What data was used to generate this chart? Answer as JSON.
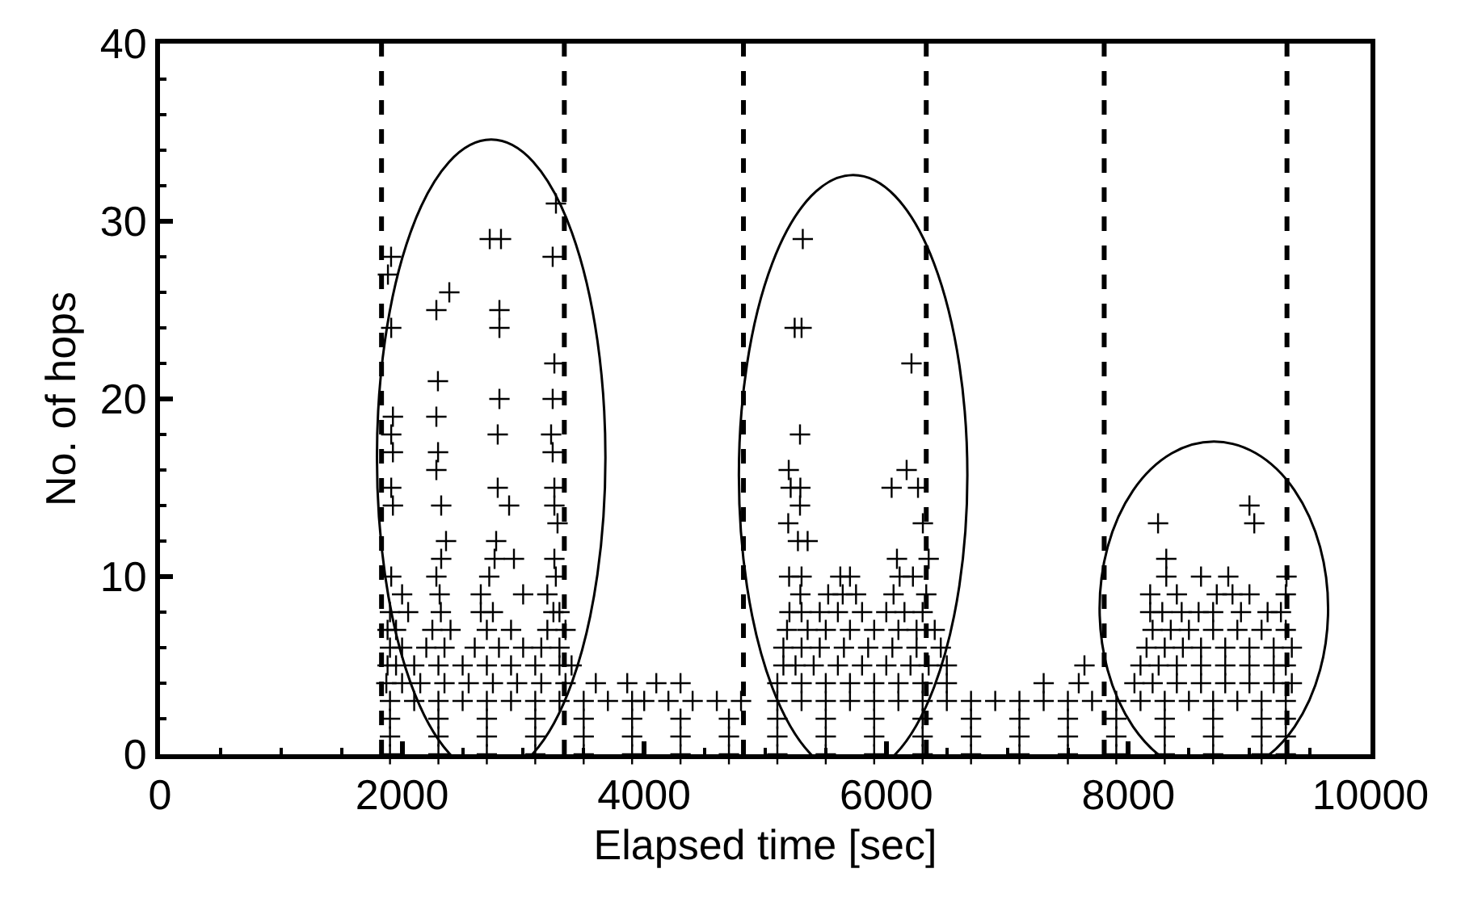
{
  "chart_data": {
    "type": "scatter",
    "xlabel": "Elapsed time [sec]",
    "ylabel": "No. of hops",
    "xlim": [
      0,
      10000
    ],
    "xticks": [
      0,
      2000,
      4000,
      6000,
      8000,
      10000
    ],
    "ylim": [
      0,
      40
    ],
    "yticks": [
      0,
      10,
      20,
      30,
      40
    ],
    "marker": "cross",
    "ref_lines": [
      {
        "axis": "x",
        "value": 1830,
        "color": "#000000",
        "line_style": "dashed"
      },
      {
        "axis": "x",
        "value": 3340,
        "color": "#000000",
        "line_style": "dashed"
      },
      {
        "axis": "x",
        "value": 4820,
        "color": "#000000",
        "line_style": "dashed"
      },
      {
        "axis": "x",
        "value": 6330,
        "color": "#000000",
        "line_style": "dashed"
      },
      {
        "axis": "x",
        "value": 7800,
        "color": "#000000",
        "line_style": "dashed"
      },
      {
        "axis": "x",
        "value": 9310,
        "color": "#000000",
        "line_style": "dashed"
      }
    ],
    "series": [
      {
        "color": "#000000",
        "x": [
          3271,
          2724,
          2817,
          3244,
          1909,
          1883,
          2390,
          2283,
          2804,
          2804,
          1910,
          3258,
          2296,
          2804,
          3244,
          1924,
          2283,
          1910,
          2790,
          3231,
          2297,
          1924,
          3244,
          2283,
          2790,
          3258,
          1910,
          2323,
          2884,
          1924,
          3258,
          2363,
          2777,
          3284,
          2764,
          2924,
          2323,
          3258,
          1910,
          2283,
          2720,
          3270,
          2000,
          2310,
          2650,
          3000,
          3200,
          1900,
          2050,
          2320,
          2650,
          2750,
          3250,
          3300,
          1880,
          1950,
          2250,
          2400,
          2700,
          2900,
          3200,
          3350,
          1900,
          2000,
          2200,
          2350,
          2600,
          2800,
          3000,
          3150,
          3300,
          1880,
          1950,
          2100,
          2300,
          2500,
          2700,
          2900,
          3100,
          3300,
          3400,
          1870,
          2000,
          2150,
          2350,
          2550,
          2750,
          2950,
          3150,
          3350,
          3600,
          1900,
          2100,
          2300,
          2500,
          2700,
          2900,
          3100,
          3300,
          3500,
          3700,
          3900,
          4000,
          4200,
          4400,
          4600,
          4800,
          3860,
          4100,
          4300,
          5310,
          5243,
          5300,
          6208,
          5287,
          6168,
          5194,
          5210,
          5290,
          6044,
          6262,
          5287,
          5190,
          6302,
          5270,
          5350,
          6088,
          6350,
          5197,
          5300,
          5620,
          5700,
          6110,
          6220,
          5290,
          5520,
          5640,
          5750,
          6060,
          6330,
          5200,
          5300,
          5450,
          5600,
          5800,
          6000,
          6150,
          6300,
          5180,
          5350,
          5500,
          5700,
          5900,
          6100,
          6250,
          6400,
          5150,
          5300,
          5450,
          5650,
          5850,
          6050,
          6250,
          6450,
          5150,
          5250,
          5400,
          5600,
          5800,
          6000,
          6200,
          6350,
          6500,
          5100,
          5300,
          5500,
          5700,
          5900,
          6100,
          6300,
          6500,
          5100,
          5300,
          5500,
          5700,
          5900,
          6100,
          6300,
          6500,
          6700,
          6900,
          7100,
          7300,
          7500,
          7300,
          7590,
          7637,
          9000,
          9040,
          8245,
          8313,
          8313,
          8600,
          8825,
          9306,
          8180,
          8400,
          8730,
          8860,
          9000,
          9300,
          8180,
          8280,
          8440,
          8580,
          8700,
          8930,
          9150,
          9260,
          8200,
          8350,
          8500,
          8700,
          8900,
          9100,
          9300,
          8150,
          8300,
          8450,
          8600,
          8800,
          9000,
          9200,
          9350,
          8100,
          8250,
          8400,
          8600,
          8800,
          9000,
          9200,
          9300,
          8050,
          8200,
          8400,
          8600,
          8800,
          9000,
          9200,
          9350,
          7700,
          7900,
          8100,
          8300,
          8500,
          8700,
          8900,
          9100,
          9300,
          1900,
          2300,
          2700,
          3100,
          3500,
          3900,
          4300,
          4700,
          5100,
          5500,
          5900,
          6300,
          6700,
          7100,
          7500,
          7900,
          8300,
          8700,
          9100,
          9300,
          1900,
          2300,
          2700,
          3100,
          3500,
          3900,
          4300,
          4700,
          5100,
          5500,
          5900,
          6300,
          6700,
          7100,
          7500,
          7900,
          8300,
          8700,
          9100,
          9300,
          1900,
          2300,
          2700,
          3100,
          3500,
          3900,
          4300,
          4700,
          5100,
          5500,
          5900,
          6300,
          6700,
          7100,
          7500,
          7900,
          8300,
          8700,
          9100,
          9300
        ],
        "values": [
          31,
          29,
          29,
          28,
          28,
          27,
          26,
          25,
          25,
          24,
          24,
          22,
          21,
          20,
          20,
          19,
          19,
          18,
          18,
          18,
          17,
          17,
          17,
          16,
          15,
          15,
          15,
          14,
          14,
          14,
          14,
          12,
          12,
          13,
          11,
          11,
          11,
          11,
          10,
          10,
          10,
          10,
          9,
          9,
          9,
          9,
          9,
          8,
          8,
          8,
          8,
          8,
          8,
          8,
          7,
          7,
          7,
          7,
          7,
          7,
          7,
          7,
          6,
          6,
          6,
          6,
          6,
          6,
          6,
          6,
          6,
          5,
          5,
          5,
          5,
          5,
          5,
          5,
          5,
          5,
          5,
          4,
          4,
          4,
          4,
          4,
          4,
          4,
          4,
          4,
          4,
          3,
          3,
          3,
          3,
          3,
          3,
          3,
          3,
          3,
          3,
          3,
          3,
          3,
          3,
          3,
          3,
          4,
          4,
          4,
          29,
          24,
          24,
          22,
          18,
          16,
          16,
          15,
          15,
          15,
          15,
          14,
          13,
          13,
          12,
          12,
          11,
          11,
          10,
          10,
          10,
          10,
          10,
          10,
          9,
          9,
          9,
          9,
          9,
          9,
          8,
          8,
          8,
          8,
          8,
          8,
          8,
          8,
          7,
          7,
          7,
          7,
          7,
          7,
          7,
          7,
          6,
          6,
          6,
          6,
          6,
          6,
          6,
          6,
          5,
          5,
          5,
          5,
          5,
          5,
          5,
          5,
          5,
          4,
          4,
          4,
          4,
          4,
          4,
          4,
          4,
          3,
          3,
          3,
          3,
          3,
          3,
          3,
          3,
          3,
          3,
          3,
          3,
          3,
          4,
          4,
          5,
          14,
          13,
          13,
          11,
          10,
          10,
          10,
          10,
          9,
          9,
          9,
          9,
          9,
          9,
          8,
          8,
          8,
          8,
          8,
          8,
          8,
          8,
          7,
          7,
          7,
          7,
          7,
          7,
          7,
          6,
          6,
          6,
          6,
          6,
          6,
          6,
          6,
          5,
          5,
          5,
          5,
          5,
          5,
          5,
          5,
          4,
          4,
          4,
          4,
          4,
          4,
          4,
          4,
          3,
          3,
          3,
          3,
          3,
          3,
          3,
          3,
          3,
          2,
          2,
          2,
          2,
          2,
          2,
          2,
          2,
          2,
          2,
          2,
          2,
          2,
          2,
          2,
          2,
          2,
          2,
          2,
          2,
          1,
          1,
          1,
          1,
          1,
          1,
          1,
          1,
          1,
          1,
          1,
          1,
          1,
          1,
          1,
          1,
          1,
          1,
          1,
          1,
          0,
          0,
          0,
          0,
          0,
          0,
          0,
          0,
          0,
          0,
          0,
          0,
          0,
          0,
          0,
          0,
          0,
          0,
          0,
          0
        ]
      }
    ]
  }
}
